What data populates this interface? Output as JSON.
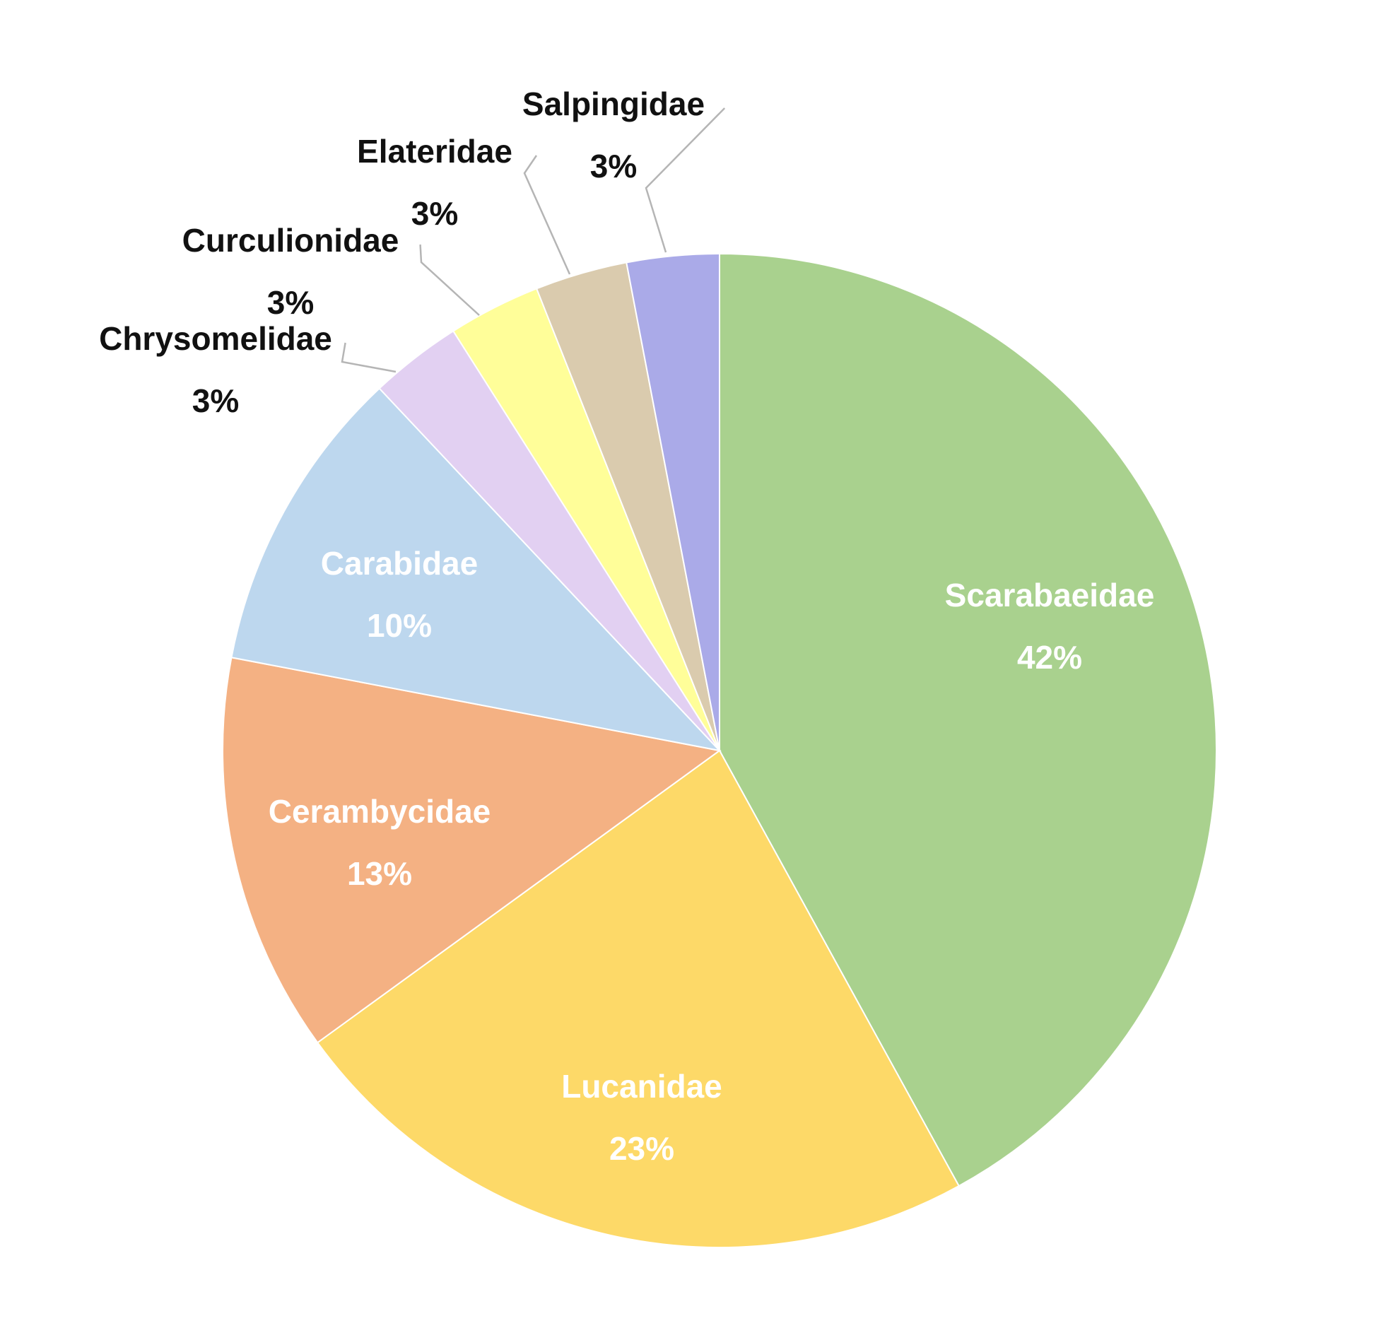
{
  "chart_data": {
    "type": "pie",
    "title": "",
    "value_unit": "%",
    "slices": [
      {
        "label": "Scarabaeidae",
        "value": 42,
        "display": "42%",
        "color": "#a9d18e"
      },
      {
        "label": "Lucanidae",
        "value": 23,
        "display": "23%",
        "color": "#fdd968"
      },
      {
        "label": "Cerambycidae",
        "value": 13,
        "display": "13%",
        "color": "#f4b183"
      },
      {
        "label": "Carabidae",
        "value": 10,
        "display": "10%",
        "color": "#bdd7ee"
      },
      {
        "label": "Chrysomelidae",
        "value": 3,
        "display": "3%",
        "color": "#e2d0f2"
      },
      {
        "label": "Curculionidae",
        "value": 3,
        "display": "3%",
        "color": "#fffe99"
      },
      {
        "label": "Elateridae",
        "value": 3,
        "display": "3%",
        "color": "#dacbae"
      },
      {
        "label": "Salpingidae",
        "value": 3,
        "display": "3%",
        "color": "#aaaae8"
      }
    ],
    "legend": "none"
  }
}
